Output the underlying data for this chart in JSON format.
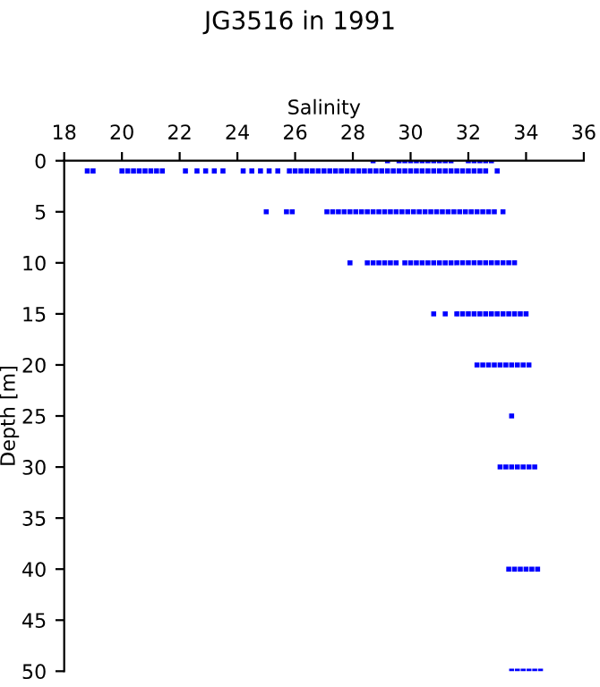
{
  "chart_data": {
    "type": "scatter",
    "title": "JG3516 in 1991",
    "xlabel": "Salinity",
    "ylabel": "Depth [m]",
    "xlim": [
      18,
      36
    ],
    "xticks": [
      18,
      20,
      22,
      24,
      26,
      28,
      30,
      32,
      34,
      36
    ],
    "ylim": [
      50,
      0
    ],
    "yticks": [
      0,
      5,
      10,
      15,
      20,
      25,
      30,
      35,
      40,
      45,
      50
    ],
    "grid": false,
    "marker": "square",
    "series": [
      {
        "color": "#0000ff",
        "x": [
          28.7,
          29.2,
          29.6,
          29.8,
          30.0,
          30.2,
          30.4,
          30.6,
          30.8,
          31.0,
          31.2,
          31.4,
          32.0,
          32.2,
          32.4,
          32.6,
          32.8
        ],
        "values": [
          0,
          0,
          0,
          0,
          0,
          0,
          0,
          0,
          0,
          0,
          0,
          0,
          0,
          0,
          0,
          0,
          0
        ]
      },
      {
        "color": "#0000ff",
        "x": [
          18.8,
          19.0,
          20.0,
          20.2,
          20.4,
          20.6,
          20.8,
          21.0,
          21.2,
          21.4,
          22.2,
          22.6,
          22.9,
          23.2,
          23.5,
          24.2,
          24.5,
          24.8,
          25.1,
          25.4,
          25.8,
          26.0,
          26.2,
          26.4,
          26.6,
          26.8,
          27.0,
          27.2,
          27.4,
          27.6,
          27.8,
          28.0,
          28.2,
          28.4,
          28.6,
          28.8,
          29.0,
          29.2,
          29.4,
          29.6,
          29.8,
          30.0,
          30.2,
          30.4,
          30.6,
          30.8,
          31.0,
          31.2,
          31.4,
          31.6,
          31.8,
          32.0,
          32.2,
          32.4,
          32.6,
          33.0
        ],
        "values": [
          1,
          1,
          1,
          1,
          1,
          1,
          1,
          1,
          1,
          1,
          1,
          1,
          1,
          1,
          1,
          1,
          1,
          1,
          1,
          1,
          1,
          1,
          1,
          1,
          1,
          1,
          1,
          1,
          1,
          1,
          1,
          1,
          1,
          1,
          1,
          1,
          1,
          1,
          1,
          1,
          1,
          1,
          1,
          1,
          1,
          1,
          1,
          1,
          1,
          1,
          1,
          1,
          1,
          1,
          1,
          1
        ]
      },
      {
        "color": "#0000ff",
        "x": [
          25.0,
          25.7,
          25.9,
          27.1,
          27.3,
          27.5,
          27.7,
          27.9,
          28.1,
          28.3,
          28.5,
          28.7,
          28.9,
          29.1,
          29.3,
          29.5,
          29.7,
          29.9,
          30.1,
          30.3,
          30.5,
          30.7,
          30.9,
          31.1,
          31.3,
          31.5,
          31.7,
          31.9,
          32.1,
          32.3,
          32.5,
          32.7,
          32.9,
          33.2
        ],
        "values": [
          5,
          5,
          5,
          5,
          5,
          5,
          5,
          5,
          5,
          5,
          5,
          5,
          5,
          5,
          5,
          5,
          5,
          5,
          5,
          5,
          5,
          5,
          5,
          5,
          5,
          5,
          5,
          5,
          5,
          5,
          5,
          5,
          5,
          5
        ]
      },
      {
        "color": "#0000ff",
        "x": [
          27.9,
          28.5,
          28.7,
          28.9,
          29.1,
          29.3,
          29.5,
          29.8,
          30.0,
          30.2,
          30.4,
          30.6,
          30.8,
          31.0,
          31.2,
          31.4,
          31.6,
          31.8,
          32.0,
          32.2,
          32.4,
          32.6,
          32.8,
          33.0,
          33.2,
          33.4,
          33.6
        ],
        "values": [
          10,
          10,
          10,
          10,
          10,
          10,
          10,
          10,
          10,
          10,
          10,
          10,
          10,
          10,
          10,
          10,
          10,
          10,
          10,
          10,
          10,
          10,
          10,
          10,
          10,
          10,
          10
        ]
      },
      {
        "color": "#0000ff",
        "x": [
          30.8,
          31.2,
          31.6,
          31.8,
          32.0,
          32.2,
          32.4,
          32.6,
          32.8,
          33.0,
          33.2,
          33.4,
          33.6,
          33.8,
          34.0
        ],
        "values": [
          15,
          15,
          15,
          15,
          15,
          15,
          15,
          15,
          15,
          15,
          15,
          15,
          15,
          15,
          15
        ]
      },
      {
        "color": "#0000ff",
        "x": [
          32.3,
          32.5,
          32.7,
          32.9,
          33.1,
          33.3,
          33.5,
          33.7,
          33.9,
          34.1
        ],
        "values": [
          20,
          20,
          20,
          20,
          20,
          20,
          20,
          20,
          20,
          20
        ]
      },
      {
        "color": "#0000ff",
        "x": [
          33.5
        ],
        "values": [
          25
        ]
      },
      {
        "color": "#0000ff",
        "x": [
          33.1,
          33.3,
          33.5,
          33.7,
          33.9,
          34.1,
          34.3
        ],
        "values": [
          30,
          30,
          30,
          30,
          30,
          30,
          30
        ]
      },
      {
        "color": "#0000ff",
        "x": [
          33.4,
          33.6,
          33.8,
          34.0,
          34.2,
          34.4
        ],
        "values": [
          40,
          40,
          40,
          40,
          40,
          40
        ]
      },
      {
        "color": "#0000ff",
        "x": [
          33.5,
          33.7,
          33.9,
          34.1,
          34.3,
          34.5
        ],
        "values": [
          50,
          50,
          50,
          50,
          50,
          50
        ]
      }
    ]
  }
}
